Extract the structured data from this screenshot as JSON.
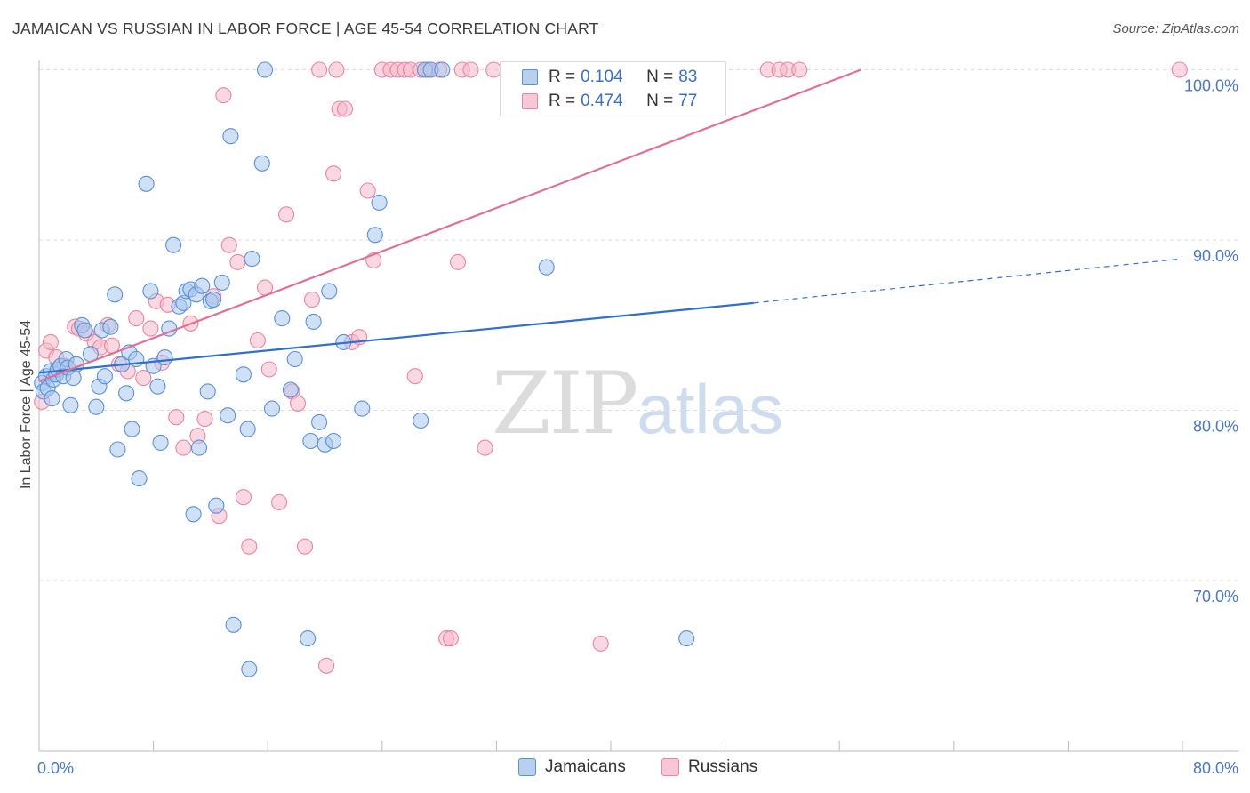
{
  "header": {
    "title": "JAMAICAN VS RUSSIAN IN LABOR FORCE | AGE 45-54 CORRELATION CHART",
    "source": "Source: ZipAtlas.com"
  },
  "watermark": {
    "zip": "ZIP",
    "atlas": "atlas"
  },
  "legend": {
    "rows": [
      {
        "r_label": "R =",
        "r_value": "0.104",
        "n_label": "N =",
        "n_value": "83"
      },
      {
        "r_label": "R =",
        "r_value": "0.474",
        "n_label": "N =",
        "n_value": "77"
      }
    ]
  },
  "bottom_legend": {
    "jamaicans": "Jamaicans",
    "russians": "Russians"
  },
  "colors": {
    "jamaican_fill": "#a9c8ee",
    "jamaican_stroke": "#5b8fd6",
    "jamaican_line": "#2f6fcf",
    "russian_fill": "#f6b8cb",
    "russian_stroke": "#e8869f",
    "russian_line": "#e07099",
    "tick_text": "#4a78c2",
    "grid": "#dddddd"
  },
  "chart_data": {
    "type": "scatter",
    "title": "JAMAICAN VS RUSSIAN IN LABOR FORCE | AGE 45-54 CORRELATION CHART",
    "xlabel": "",
    "ylabel": "In Labor Force | Age 45-54",
    "xlim": [
      0,
      80
    ],
    "ylim": [
      61,
      101.5
    ],
    "x_tick_labels": [
      "0.0%",
      "80.0%"
    ],
    "y_ticks": [
      {
        "value": 100,
        "label": "100.0%"
      },
      {
        "value": 90,
        "label": "90.0%"
      },
      {
        "value": 80,
        "label": "80.0%"
      },
      {
        "value": 70,
        "label": "70.0%"
      }
    ],
    "grid": true,
    "legend_placement": "top-center",
    "series": [
      {
        "name": "Jamaicans",
        "r": 0.104,
        "n": 83,
        "trend": {
          "x0": 0,
          "y0": 82.2,
          "x1": 50,
          "y1": 86.3,
          "dash_x1": 80,
          "dash_y1": 88.9
        },
        "points": [
          [
            0.2,
            81.6
          ],
          [
            0.3,
            81.1
          ],
          [
            0.5,
            82.0
          ],
          [
            0.6,
            81.3
          ],
          [
            0.8,
            82.3
          ],
          [
            0.9,
            80.7
          ],
          [
            1.0,
            81.8
          ],
          [
            1.2,
            82.1
          ],
          [
            1.3,
            82.4
          ],
          [
            1.5,
            82.6
          ],
          [
            1.7,
            82.0
          ],
          [
            1.9,
            83.0
          ],
          [
            2.0,
            82.5
          ],
          [
            2.2,
            80.3
          ],
          [
            2.4,
            81.9
          ],
          [
            2.6,
            82.7
          ],
          [
            3.0,
            85.0
          ],
          [
            3.2,
            84.7
          ],
          [
            3.6,
            83.3
          ],
          [
            4.0,
            80.2
          ],
          [
            4.2,
            81.4
          ],
          [
            4.4,
            84.7
          ],
          [
            4.6,
            82.0
          ],
          [
            5.0,
            84.9
          ],
          [
            5.3,
            86.8
          ],
          [
            5.5,
            77.7
          ],
          [
            5.8,
            82.7
          ],
          [
            6.1,
            81.0
          ],
          [
            6.3,
            83.4
          ],
          [
            6.5,
            78.9
          ],
          [
            6.8,
            83.0
          ],
          [
            7.0,
            76.0
          ],
          [
            7.5,
            93.3
          ],
          [
            7.8,
            87.0
          ],
          [
            8.0,
            82.6
          ],
          [
            8.3,
            81.4
          ],
          [
            8.5,
            78.1
          ],
          [
            8.8,
            83.1
          ],
          [
            9.1,
            84.8
          ],
          [
            9.4,
            89.7
          ],
          [
            9.8,
            86.1
          ],
          [
            10.1,
            86.3
          ],
          [
            10.3,
            87.0
          ],
          [
            10.6,
            87.1
          ],
          [
            10.8,
            73.9
          ],
          [
            11.0,
            86.8
          ],
          [
            11.2,
            77.8
          ],
          [
            11.4,
            87.3
          ],
          [
            11.8,
            81.1
          ],
          [
            12.0,
            86.4
          ],
          [
            12.2,
            86.5
          ],
          [
            12.4,
            74.4
          ],
          [
            12.8,
            87.5
          ],
          [
            13.2,
            79.7
          ],
          [
            13.4,
            96.1
          ],
          [
            13.6,
            67.4
          ],
          [
            14.3,
            82.1
          ],
          [
            14.6,
            78.9
          ],
          [
            14.9,
            88.9
          ],
          [
            15.6,
            94.5
          ],
          [
            15.8,
            100.0
          ],
          [
            16.3,
            80.1
          ],
          [
            17.0,
            85.4
          ],
          [
            17.6,
            81.2
          ],
          [
            17.9,
            83.0
          ],
          [
            18.8,
            66.6
          ],
          [
            19.0,
            78.2
          ],
          [
            19.2,
            85.2
          ],
          [
            19.6,
            79.3
          ],
          [
            20.0,
            78.0
          ],
          [
            20.3,
            87.0
          ],
          [
            20.6,
            78.2
          ],
          [
            21.3,
            84.0
          ],
          [
            22.6,
            80.1
          ],
          [
            23.5,
            90.3
          ],
          [
            23.8,
            92.2
          ],
          [
            26.7,
            79.4
          ],
          [
            27.0,
            100.0
          ],
          [
            27.4,
            100.0
          ],
          [
            28.2,
            100.0
          ],
          [
            35.5,
            88.4
          ],
          [
            45.3,
            66.6
          ],
          [
            14.7,
            64.8
          ]
        ]
      },
      {
        "name": "Russians",
        "r": 0.474,
        "n": 77,
        "trend": {
          "x0": 0,
          "y0": 81.7,
          "x1": 57.5,
          "y1": 100.0
        },
        "points": [
          [
            0.2,
            80.5
          ],
          [
            0.5,
            83.5
          ],
          [
            0.8,
            84.0
          ],
          [
            1.2,
            83.1
          ],
          [
            1.8,
            82.6
          ],
          [
            2.5,
            84.9
          ],
          [
            2.8,
            84.8
          ],
          [
            3.3,
            84.5
          ],
          [
            3.9,
            84.0
          ],
          [
            4.3,
            83.7
          ],
          [
            4.8,
            85.0
          ],
          [
            5.1,
            83.8
          ],
          [
            5.6,
            82.7
          ],
          [
            6.2,
            82.3
          ],
          [
            6.8,
            85.4
          ],
          [
            7.3,
            81.9
          ],
          [
            7.8,
            84.8
          ],
          [
            8.2,
            86.4
          ],
          [
            8.6,
            82.8
          ],
          [
            9.0,
            86.2
          ],
          [
            9.6,
            79.6
          ],
          [
            10.1,
            77.8
          ],
          [
            10.6,
            85.1
          ],
          [
            11.1,
            78.5
          ],
          [
            11.6,
            79.5
          ],
          [
            12.2,
            86.7
          ],
          [
            12.6,
            73.8
          ],
          [
            12.9,
            98.5
          ],
          [
            13.3,
            89.7
          ],
          [
            13.9,
            88.7
          ],
          [
            14.3,
            74.9
          ],
          [
            14.7,
            72.0
          ],
          [
            15.3,
            84.1
          ],
          [
            15.8,
            87.2
          ],
          [
            16.1,
            82.4
          ],
          [
            16.8,
            74.6
          ],
          [
            17.3,
            91.5
          ],
          [
            17.7,
            81.1
          ],
          [
            18.1,
            80.4
          ],
          [
            18.6,
            72.0
          ],
          [
            19.1,
            86.5
          ],
          [
            19.6,
            100.0
          ],
          [
            20.1,
            65.0
          ],
          [
            20.6,
            93.9
          ],
          [
            21.0,
            97.7
          ],
          [
            21.4,
            97.7
          ],
          [
            21.9,
            84.0
          ],
          [
            22.4,
            84.3
          ],
          [
            23.0,
            92.9
          ],
          [
            23.4,
            88.8
          ],
          [
            24.0,
            100.0
          ],
          [
            24.6,
            100.0
          ],
          [
            25.1,
            100.0
          ],
          [
            25.6,
            100.0
          ],
          [
            26.0,
            100.0
          ],
          [
            26.3,
            82.0
          ],
          [
            26.7,
            100.0
          ],
          [
            27.2,
            100.0
          ],
          [
            28.0,
            100.0
          ],
          [
            28.5,
            66.6
          ],
          [
            28.8,
            66.6
          ],
          [
            29.3,
            88.7
          ],
          [
            29.6,
            100.0
          ],
          [
            30.2,
            100.0
          ],
          [
            31.2,
            77.8
          ],
          [
            31.8,
            100.0
          ],
          [
            33.0,
            100.0
          ],
          [
            33.5,
            100.0
          ],
          [
            34.0,
            100.0
          ],
          [
            36.6,
            100.0
          ],
          [
            39.3,
            66.3
          ],
          [
            51.0,
            100.0
          ],
          [
            51.8,
            100.0
          ],
          [
            52.4,
            100.0
          ],
          [
            53.2,
            100.0
          ],
          [
            79.8,
            100.0
          ],
          [
            20.8,
            100.0
          ]
        ]
      }
    ]
  }
}
